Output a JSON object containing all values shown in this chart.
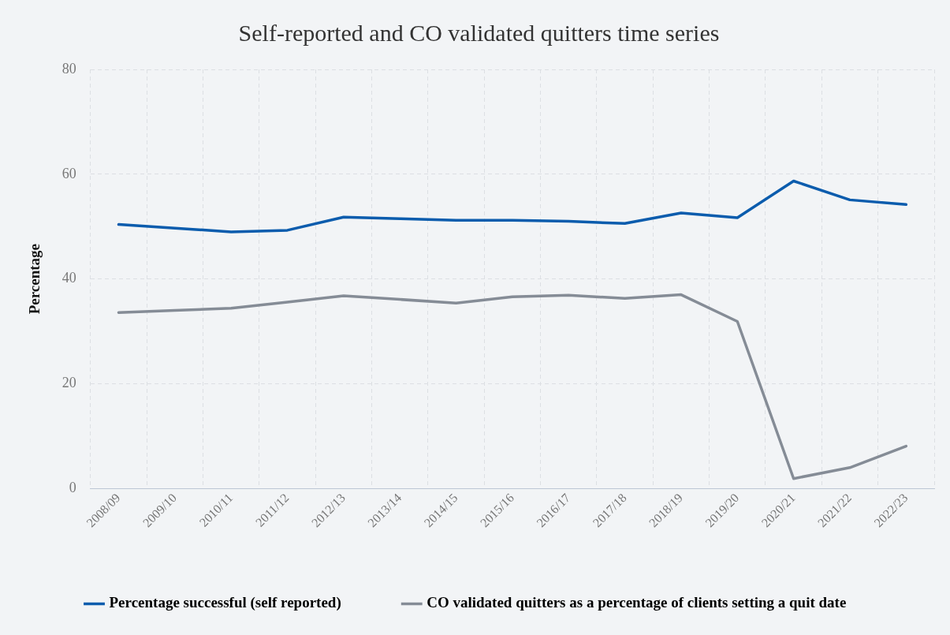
{
  "chart_data": {
    "type": "line",
    "title": "Self-reported and CO validated quitters time series",
    "ylabel": "Percentage",
    "categories": [
      "2008/09",
      "2009/10",
      "2010/11",
      "2011/12",
      "2012/13",
      "2013/14",
      "2014/15",
      "2015/16",
      "2016/17",
      "2017/18",
      "2018/19",
      "2019/20",
      "2020/21",
      "2021/22",
      "2022/23"
    ],
    "series": [
      {
        "name": "Percentage successful (self reported)",
        "color": "#0b5cad",
        "values": [
          50.4,
          49.7,
          49.0,
          49.3,
          51.8,
          51.5,
          51.2,
          51.2,
          51.0,
          50.6,
          52.6,
          51.7,
          58.7,
          55.1,
          54.2
        ]
      },
      {
        "name": "CO validated quitters as a percentage of clients setting a quit date",
        "color": "#858c96",
        "values": [
          33.6,
          34.0,
          34.4,
          35.6,
          36.8,
          36.1,
          35.4,
          36.6,
          36.9,
          36.3,
          37.0,
          31.9,
          1.9,
          4.0,
          8.1
        ]
      }
    ],
    "ylim": [
      0,
      80
    ],
    "yticks": [
      0,
      20,
      40,
      60,
      80
    ],
    "grid": true,
    "legend": "bottom",
    "marker": "none",
    "line_style": "solid"
  }
}
